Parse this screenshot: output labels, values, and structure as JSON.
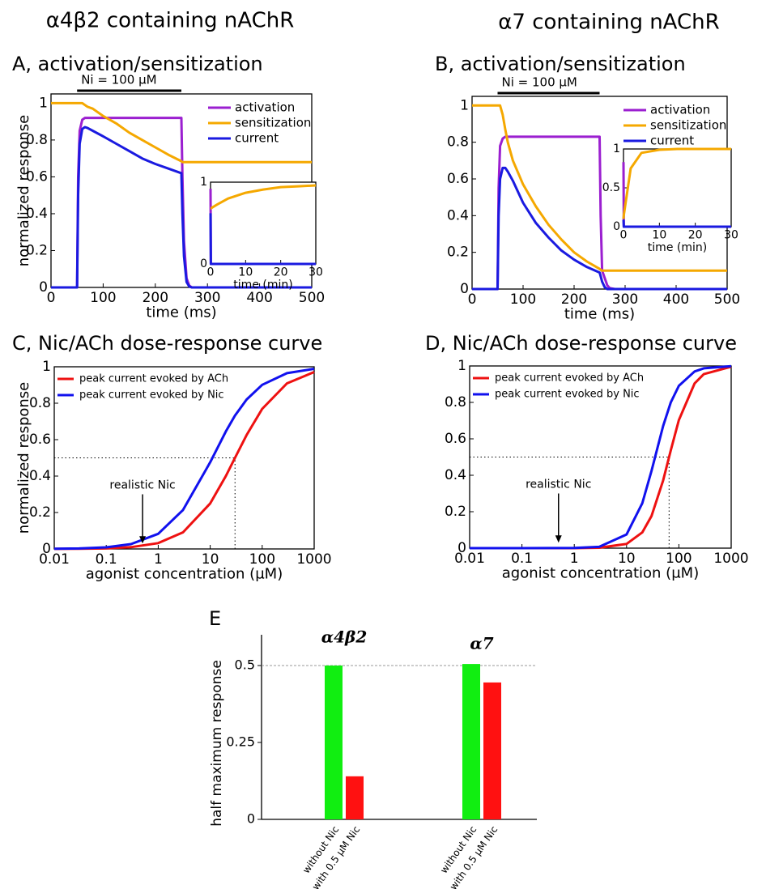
{
  "column_titles": [
    "α4β2 containing nAChR",
    "α7 containing nAChR"
  ],
  "chart_data": [
    {
      "type": "line",
      "title": "A, activation/sensitization",
      "xlabel": "time (ms)",
      "ylabel": "normalized response",
      "x": [
        0,
        50,
        52,
        55,
        60,
        65,
        70,
        80,
        100,
        125,
        150,
        175,
        200,
        225,
        250,
        252,
        255,
        260,
        265,
        270,
        280,
        300,
        350,
        400,
        450,
        500
      ],
      "series": [
        {
          "name": "activation",
          "color": "#9b1fd0",
          "values": [
            0,
            0,
            0.6,
            0.85,
            0.91,
            0.92,
            0.92,
            0.92,
            0.92,
            0.92,
            0.92,
            0.92,
            0.92,
            0.92,
            0.92,
            0.6,
            0.25,
            0.05,
            0.01,
            0,
            0,
            0,
            0,
            0,
            0,
            0
          ]
        },
        {
          "name": "sensitization",
          "color": "#f5a800",
          "values": [
            1,
            1,
            1,
            1,
            1,
            0.99,
            0.98,
            0.97,
            0.93,
            0.89,
            0.84,
            0.8,
            0.76,
            0.72,
            0.685,
            0.68,
            0.68,
            0.68,
            0.68,
            0.68,
            0.68,
            0.68,
            0.68,
            0.68,
            0.68,
            0.68
          ]
        },
        {
          "name": "current",
          "color": "#1a1ae0",
          "values": [
            0,
            0,
            0.5,
            0.78,
            0.86,
            0.87,
            0.865,
            0.85,
            0.82,
            0.78,
            0.74,
            0.7,
            0.67,
            0.645,
            0.62,
            0.4,
            0.17,
            0.03,
            0.005,
            0,
            0,
            0,
            0,
            0,
            0,
            0
          ]
        }
      ],
      "stimulus": {
        "label": "Ni = 100 µM",
        "start": 50,
        "end": 250
      },
      "xlim": [
        0,
        500
      ],
      "ylim": [
        0,
        1.05
      ],
      "xticks": [
        0,
        100,
        200,
        300,
        400,
        500
      ],
      "yticks": [
        0,
        0.2,
        0.4,
        0.6,
        0.8,
        1
      ],
      "legend": "upper right"
    },
    {
      "type": "line",
      "xlabel": "time (min)",
      "x": [
        0,
        0.1,
        2,
        5,
        10,
        15,
        20,
        25,
        30
      ],
      "series": [
        {
          "color": "#9b1fd0",
          "values": [
            0.92,
            0,
            0,
            0,
            0,
            0,
            0,
            0,
            0
          ]
        },
        {
          "color": "#1a1ae0",
          "values": [
            0.62,
            0,
            0,
            0,
            0,
            0,
            0,
            0,
            0
          ]
        },
        {
          "color": "#f5a800",
          "values": [
            0.68,
            0.68,
            0.73,
            0.8,
            0.87,
            0.91,
            0.94,
            0.95,
            0.96
          ]
        }
      ],
      "xlim": [
        0,
        30
      ],
      "ylim": [
        0,
        1
      ],
      "xticks": [
        0,
        10,
        20,
        30
      ],
      "yticks": [
        0,
        1
      ]
    },
    {
      "type": "line",
      "title": "B, activation/sensitization",
      "xlabel": "time (ms)",
      "x": [
        0,
        50,
        52,
        55,
        60,
        65,
        70,
        80,
        100,
        125,
        150,
        175,
        200,
        225,
        250,
        252,
        255,
        260,
        265,
        270,
        280,
        300,
        350,
        400,
        450,
        500
      ],
      "series": [
        {
          "name": "activation",
          "color": "#9b1fd0",
          "values": [
            0,
            0,
            0.55,
            0.78,
            0.82,
            0.83,
            0.83,
            0.83,
            0.83,
            0.83,
            0.83,
            0.83,
            0.83,
            0.83,
            0.83,
            0.4,
            0.1,
            0.06,
            0.02,
            0.005,
            0,
            0,
            0,
            0,
            0,
            0
          ]
        },
        {
          "name": "sensitization",
          "color": "#f5a800",
          "values": [
            1,
            1,
            1,
            1,
            0.95,
            0.87,
            0.8,
            0.7,
            0.57,
            0.45,
            0.35,
            0.27,
            0.2,
            0.15,
            0.11,
            0.105,
            0.1,
            0.1,
            0.1,
            0.1,
            0.1,
            0.1,
            0.1,
            0.1,
            0.1,
            0.1
          ]
        },
        {
          "name": "current",
          "color": "#1a1ae0",
          "values": [
            0,
            0,
            0.4,
            0.6,
            0.66,
            0.66,
            0.64,
            0.59,
            0.47,
            0.36,
            0.28,
            0.21,
            0.16,
            0.12,
            0.09,
            0.07,
            0.04,
            0.01,
            0,
            0,
            0,
            0,
            0,
            0,
            0,
            0
          ]
        }
      ],
      "stimulus": {
        "label": "Ni = 100 µM",
        "start": 50,
        "end": 250
      },
      "xlim": [
        0,
        500
      ],
      "ylim": [
        0,
        1.05
      ],
      "xticks": [
        0,
        100,
        200,
        300,
        400,
        500
      ],
      "yticks": [
        0,
        0.2,
        0.4,
        0.6,
        0.8,
        1
      ],
      "legend": "upper right"
    },
    {
      "type": "line",
      "xlabel": "time (min)",
      "x": [
        0,
        0.1,
        2,
        5,
        10,
        15,
        20,
        25,
        30
      ],
      "series": [
        {
          "color": "#9b1fd0",
          "values": [
            0.83,
            0,
            0,
            0,
            0,
            0,
            0,
            0,
            0
          ]
        },
        {
          "color": "#1a1ae0",
          "values": [
            0.09,
            0,
            0,
            0,
            0,
            0,
            0,
            0,
            0
          ]
        },
        {
          "color": "#f5a800",
          "values": [
            0.1,
            0.15,
            0.75,
            0.95,
            0.99,
            1,
            1,
            1,
            1
          ]
        }
      ],
      "xlim": [
        0,
        30
      ],
      "ylim": [
        0,
        1
      ],
      "xticks": [
        0,
        10,
        20,
        30
      ],
      "yticks": [
        0,
        0.5,
        1
      ]
    },
    {
      "type": "line",
      "title": "C, Nic/ACh dose-response curve",
      "xlabel": "agonist concentration (µM)",
      "ylabel": "normalized response",
      "xscale": "log",
      "x": [
        0.01,
        0.03,
        0.1,
        0.3,
        1,
        3,
        10,
        20,
        30,
        50,
        100,
        300,
        1000
      ],
      "series": [
        {
          "name": "peak current evoked by ACh",
          "color": "#ee1111",
          "values": [
            0.0003,
            0.001,
            0.0033,
            0.0099,
            0.032,
            0.091,
            0.25,
            0.4,
            0.5,
            0.625,
            0.769,
            0.909,
            0.971
          ]
        },
        {
          "name": "peak current evoked by Nic",
          "color": "#1111ee",
          "values": [
            0.0009,
            0.0027,
            0.009,
            0.0265,
            0.083,
            0.214,
            0.476,
            0.645,
            0.732,
            0.82,
            0.901,
            0.965,
            0.989
          ]
        }
      ],
      "reference": {
        "x": 30,
        "y": 0.5
      },
      "annotation": {
        "text": "realistic Nic",
        "x": 0.5
      },
      "xlim": [
        0.01,
        1000
      ],
      "ylim": [
        0,
        1
      ],
      "xticks": [
        0.01,
        0.1,
        1,
        10,
        100,
        1000
      ],
      "yticks": [
        0,
        0.2,
        0.4,
        0.6,
        0.8,
        1
      ],
      "legend": "upper left"
    },
    {
      "type": "line",
      "title": "D, Nic/ACh dose-response curve",
      "xlabel": "agonist concentration (µM)",
      "xscale": "log",
      "x": [
        0.01,
        0.1,
        1,
        3,
        10,
        20,
        30,
        50,
        70,
        100,
        200,
        300,
        1000
      ],
      "series": [
        {
          "name": "peak current evoked by ACh",
          "color": "#ee1111",
          "values": [
            0,
            0,
            0.0002,
            0.002,
            0.023,
            0.086,
            0.176,
            0.372,
            0.537,
            0.703,
            0.904,
            0.955,
            0.996
          ]
        },
        {
          "name": "peak current evoked by Nic",
          "color": "#1111ee",
          "values": [
            0,
            0,
            0.0008,
            0.007,
            0.075,
            0.246,
            0.424,
            0.671,
            0.8,
            0.891,
            0.97,
            0.987,
            0.999
          ]
        }
      ],
      "reference": {
        "x": 65,
        "y": 0.5
      },
      "annotation": {
        "text": "realistic Nic",
        "x": 0.5
      },
      "xlim": [
        0.01,
        1000
      ],
      "ylim": [
        0,
        1
      ],
      "xticks": [
        0.01,
        0.1,
        1,
        10,
        100,
        1000
      ],
      "yticks": [
        0,
        0.2,
        0.4,
        0.6,
        0.8,
        1
      ],
      "legend": "upper left"
    },
    {
      "type": "bar",
      "title": "E",
      "ylabel": "half maximum response",
      "groups": [
        "α4β2",
        "α7"
      ],
      "series": [
        {
          "name": "without Nic",
          "color": "#11ee11",
          "values": [
            0.5,
            0.505
          ]
        },
        {
          "name": "with 0.5 µM Nic",
          "color": "#ff1111",
          "values": [
            0.14,
            0.445
          ]
        }
      ],
      "reference": {
        "y": 0.5
      },
      "ylim": [
        0,
        0.6
      ],
      "yticks": [
        0,
        0.25,
        0.5
      ]
    }
  ]
}
